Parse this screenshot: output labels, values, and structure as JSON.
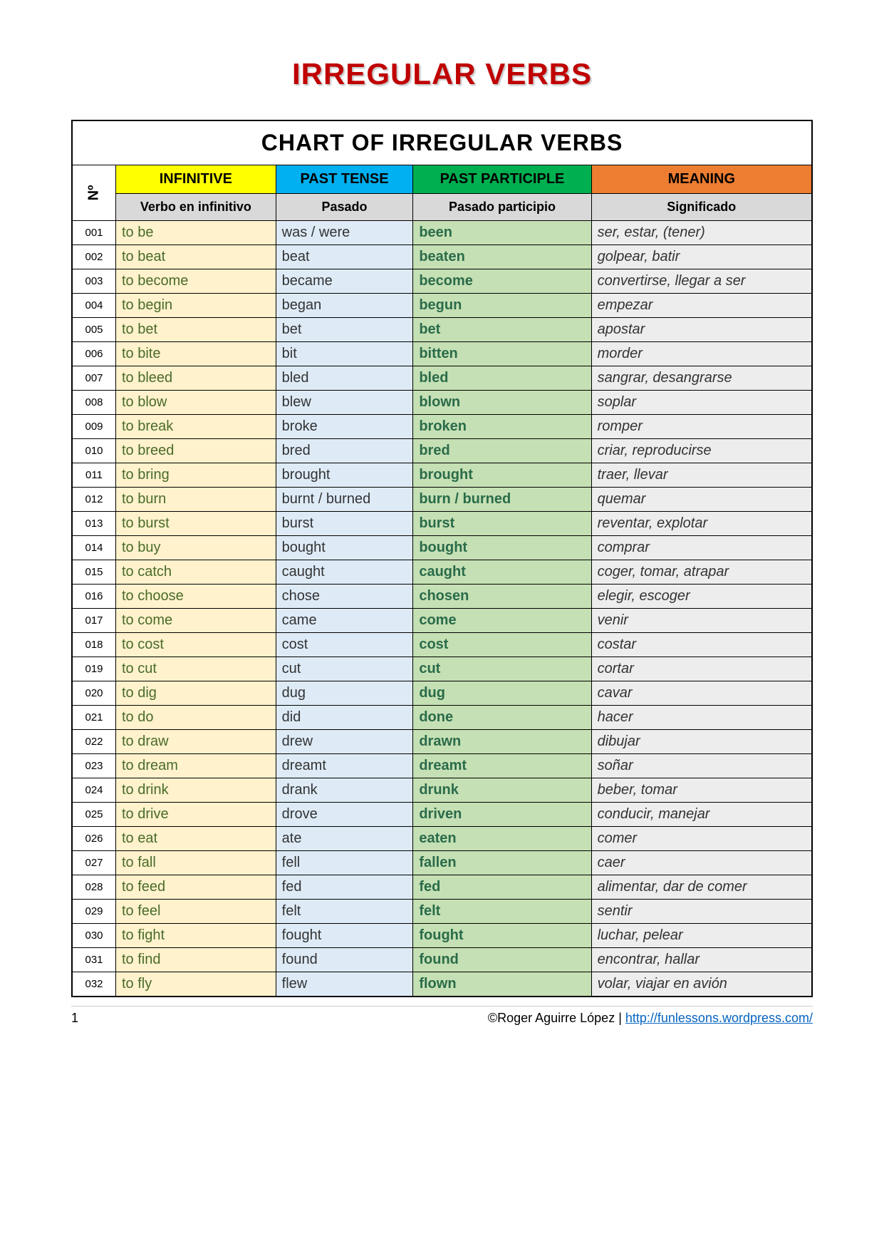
{
  "title": "IRREGULAR VERBS",
  "chart_title": "CHART OF IRREGULAR VERBS",
  "num_header": "Nº",
  "headers": {
    "infinitive": "INFINITIVE",
    "past": "PAST TENSE",
    "participle": "PAST PARTICIPLE",
    "meaning": "MEANING"
  },
  "subheaders": {
    "infinitive": "Verbo en infinitivo",
    "past": "Pasado",
    "participle": "Pasado participio",
    "meaning": "Significado"
  },
  "colors": {
    "title": "#c00000",
    "head_infinitive_bg": "#ffff00",
    "head_past_bg": "#00b0f0",
    "head_participle_bg": "#00b050",
    "head_meaning_bg": "#ed7d31",
    "sub_bg": "#d9d9d9",
    "body_infinitive_bg": "#fff2cc",
    "body_past_bg": "#deebf7",
    "body_participle_bg": "#c5e0b4",
    "body_meaning_bg": "#ededed",
    "infinitive_text": "#4a6b2a",
    "participle_text": "#2a6b4a",
    "link": "#0563c1"
  },
  "rows": [
    {
      "n": "001",
      "inf": "to be",
      "past": "was / were",
      "pp": "been",
      "mean": "ser, estar, (tener)"
    },
    {
      "n": "002",
      "inf": "to beat",
      "past": "beat",
      "pp": "beaten",
      "mean": "golpear, batir"
    },
    {
      "n": "003",
      "inf": "to become",
      "past": "became",
      "pp": "become",
      "mean": "convertirse, llegar a ser"
    },
    {
      "n": "004",
      "inf": "to begin",
      "past": "began",
      "pp": "begun",
      "mean": "empezar"
    },
    {
      "n": "005",
      "inf": "to bet",
      "past": "bet",
      "pp": "bet",
      "mean": "apostar"
    },
    {
      "n": "006",
      "inf": "to bite",
      "past": "bit",
      "pp": "bitten",
      "mean": "morder"
    },
    {
      "n": "007",
      "inf": "to bleed",
      "past": "bled",
      "pp": "bled",
      "mean": "sangrar, desangrarse"
    },
    {
      "n": "008",
      "inf": "to blow",
      "past": "blew",
      "pp": "blown",
      "mean": "soplar"
    },
    {
      "n": "009",
      "inf": "to break",
      "past": "broke",
      "pp": "broken",
      "mean": "romper"
    },
    {
      "n": "010",
      "inf": "to breed",
      "past": "bred",
      "pp": "bred",
      "mean": "criar, reproducirse"
    },
    {
      "n": "011",
      "inf": "to bring",
      "past": "brought",
      "pp": "brought",
      "mean": "traer, llevar"
    },
    {
      "n": "012",
      "inf": "to burn",
      "past": "burnt / burned",
      "pp": "burn / burned",
      "mean": "quemar"
    },
    {
      "n": "013",
      "inf": "to burst",
      "past": "burst",
      "pp": "burst",
      "mean": "reventar, explotar"
    },
    {
      "n": "014",
      "inf": "to buy",
      "past": "bought",
      "pp": "bought",
      "mean": "comprar"
    },
    {
      "n": "015",
      "inf": "to catch",
      "past": "caught",
      "pp": "caught",
      "mean": "coger, tomar, atrapar"
    },
    {
      "n": "016",
      "inf": "to choose",
      "past": "chose",
      "pp": "chosen",
      "mean": "elegir, escoger"
    },
    {
      "n": "017",
      "inf": "to come",
      "past": "came",
      "pp": "come",
      "mean": "venir"
    },
    {
      "n": "018",
      "inf": "to cost",
      "past": "cost",
      "pp": "cost",
      "mean": "costar"
    },
    {
      "n": "019",
      "inf": "to cut",
      "past": "cut",
      "pp": "cut",
      "mean": "cortar"
    },
    {
      "n": "020",
      "inf": "to dig",
      "past": "dug",
      "pp": "dug",
      "mean": "cavar"
    },
    {
      "n": "021",
      "inf": "to do",
      "past": "did",
      "pp": "done",
      "mean": "hacer"
    },
    {
      "n": "022",
      "inf": "to draw",
      "past": "drew",
      "pp": "drawn",
      "mean": "dibujar"
    },
    {
      "n": "023",
      "inf": "to dream",
      "past": "dreamt",
      "pp": "dreamt",
      "mean": "soñar"
    },
    {
      "n": "024",
      "inf": "to drink",
      "past": "drank",
      "pp": "drunk",
      "mean": "beber, tomar"
    },
    {
      "n": "025",
      "inf": "to drive",
      "past": "drove",
      "pp": "driven",
      "mean": "conducir, manejar"
    },
    {
      "n": "026",
      "inf": "to eat",
      "past": "ate",
      "pp": "eaten",
      "mean": "comer"
    },
    {
      "n": "027",
      "inf": "to fall",
      "past": "fell",
      "pp": "fallen",
      "mean": "caer"
    },
    {
      "n": "028",
      "inf": "to feed",
      "past": "fed",
      "pp": "fed",
      "mean": "alimentar, dar de comer"
    },
    {
      "n": "029",
      "inf": "to feel",
      "past": "felt",
      "pp": "felt",
      "mean": "sentir"
    },
    {
      "n": "030",
      "inf": "to fight",
      "past": "fought",
      "pp": "fought",
      "mean": "luchar, pelear"
    },
    {
      "n": "031",
      "inf": "to find",
      "past": "found",
      "pp": "found",
      "mean": "encontrar, hallar"
    },
    {
      "n": "032",
      "inf": "to fly",
      "past": "flew",
      "pp": "flown",
      "mean": "volar, viajar en avión"
    }
  ],
  "footer": {
    "page": "1",
    "credit": "©Roger Aguirre López | ",
    "link_text": "http://funlessons.wordpress.com/"
  }
}
